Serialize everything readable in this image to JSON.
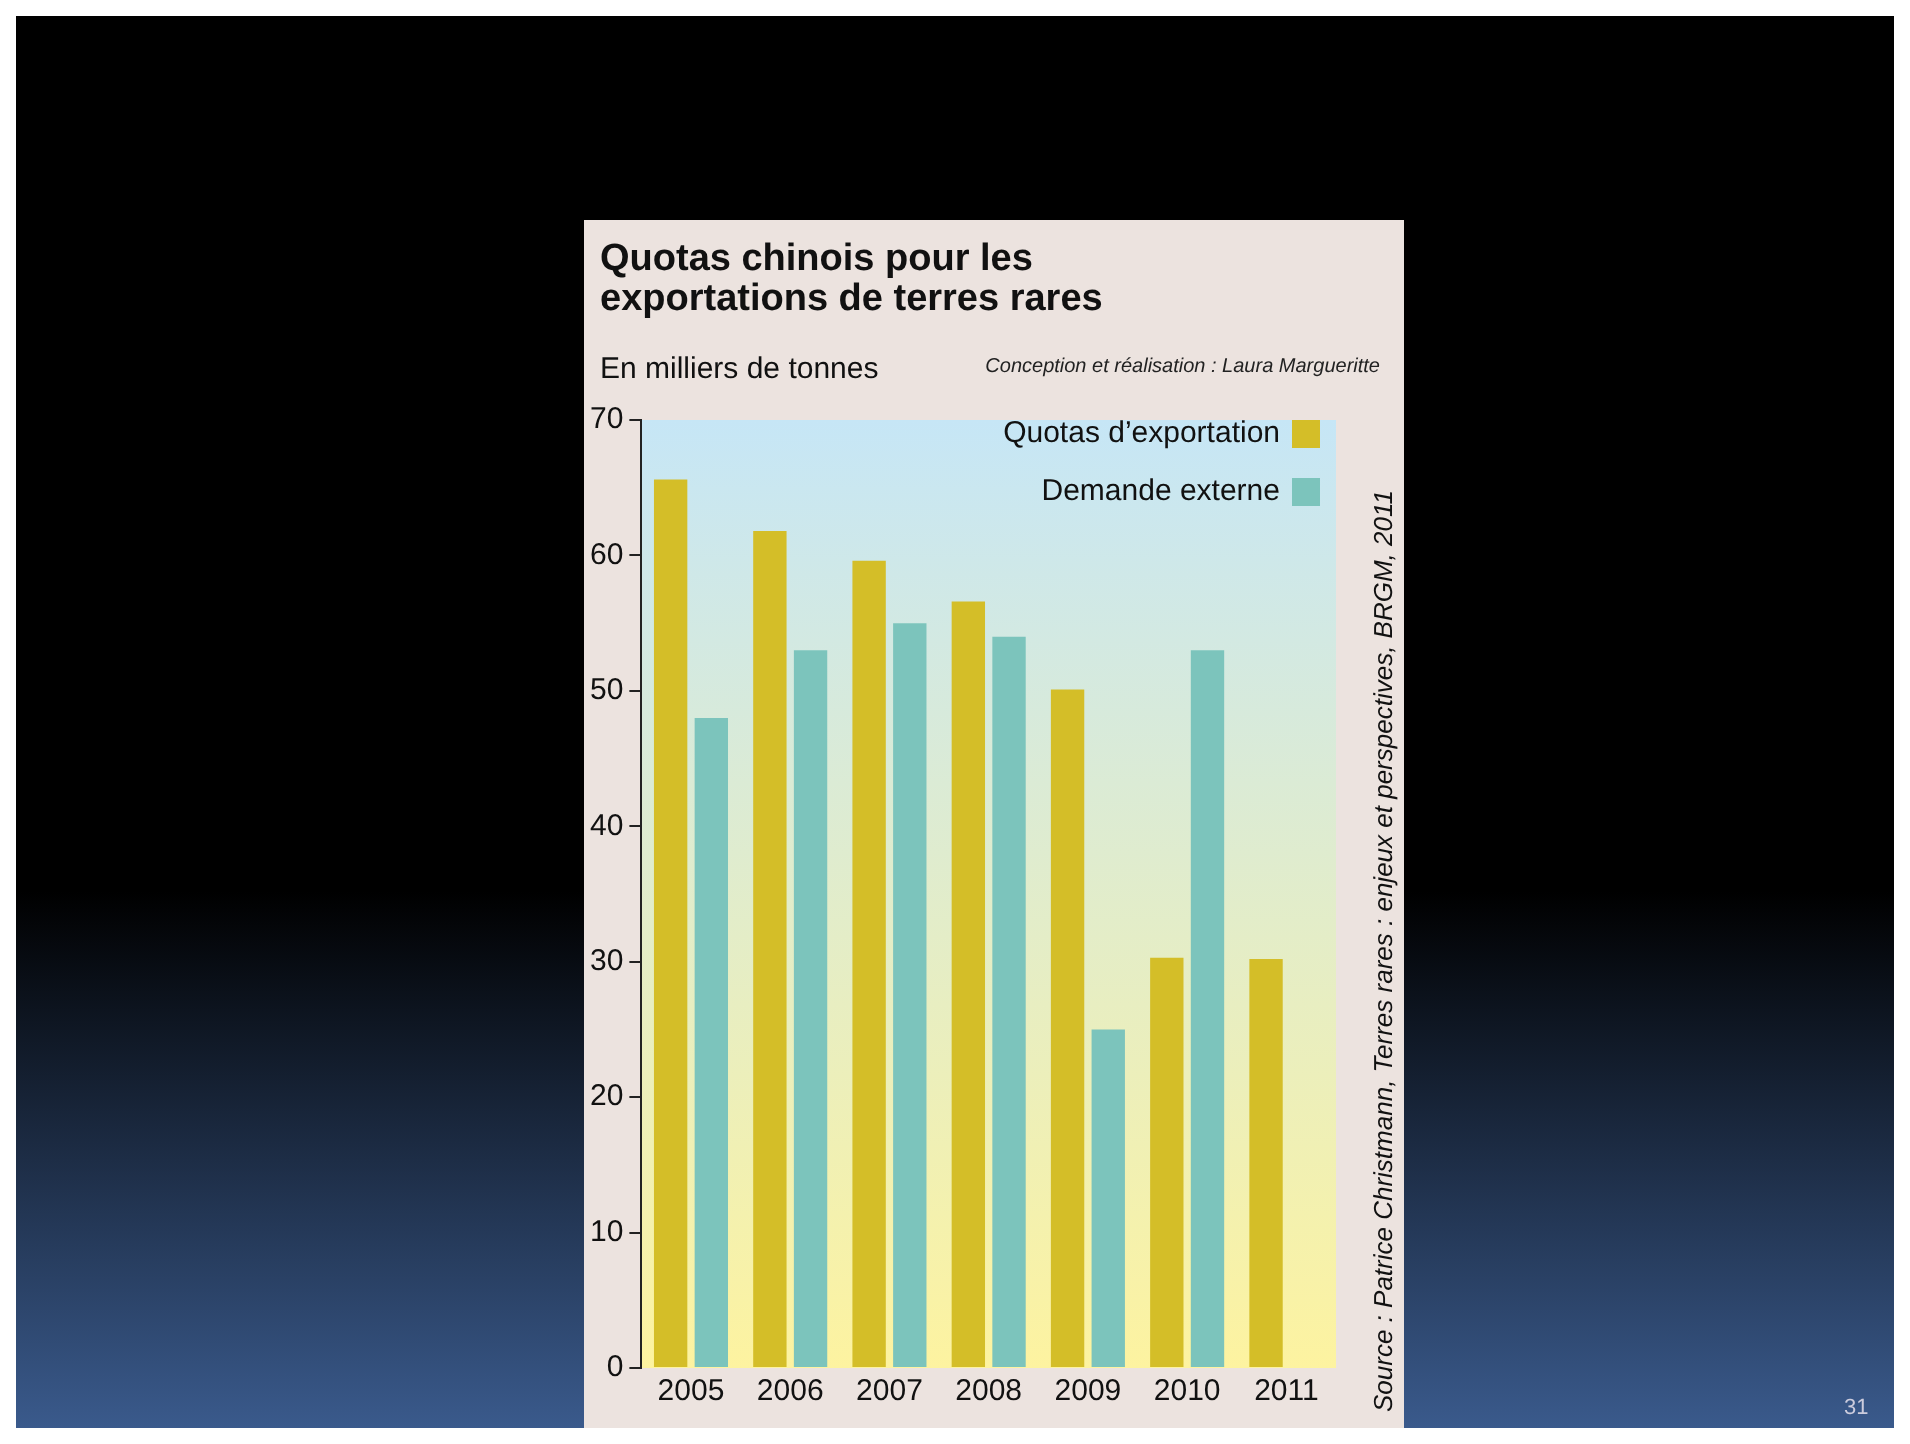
{
  "chart_data": {
    "type": "bar",
    "title": "Quotas chinois pour les exportations de terres rares",
    "ylabel": "En milliers de tonnes",
    "categories": [
      "2005",
      "2006",
      "2007",
      "2008",
      "2009",
      "2010",
      "2011"
    ],
    "series": [
      {
        "name": "Quotas d’exportation",
        "color": "#d4be28",
        "values": [
          65.6,
          61.8,
          59.6,
          56.6,
          50.1,
          30.3,
          30.2
        ]
      },
      {
        "name": "Demande externe",
        "color": "#7cc4bc",
        "values": [
          48,
          53,
          55,
          54,
          25,
          53,
          null
        ]
      }
    ],
    "ylim": [
      0,
      70
    ],
    "yticks": [
      0,
      10,
      20,
      30,
      40,
      50,
      60,
      70
    ],
    "grid": false,
    "legend": "top right",
    "annotations": [
      "Conception et réalisation : Laura Margueritte",
      "Source : Patrice Christmann, Terres rares : enjeux et perspectives, BRGM, 2011",
      "31"
    ]
  }
}
